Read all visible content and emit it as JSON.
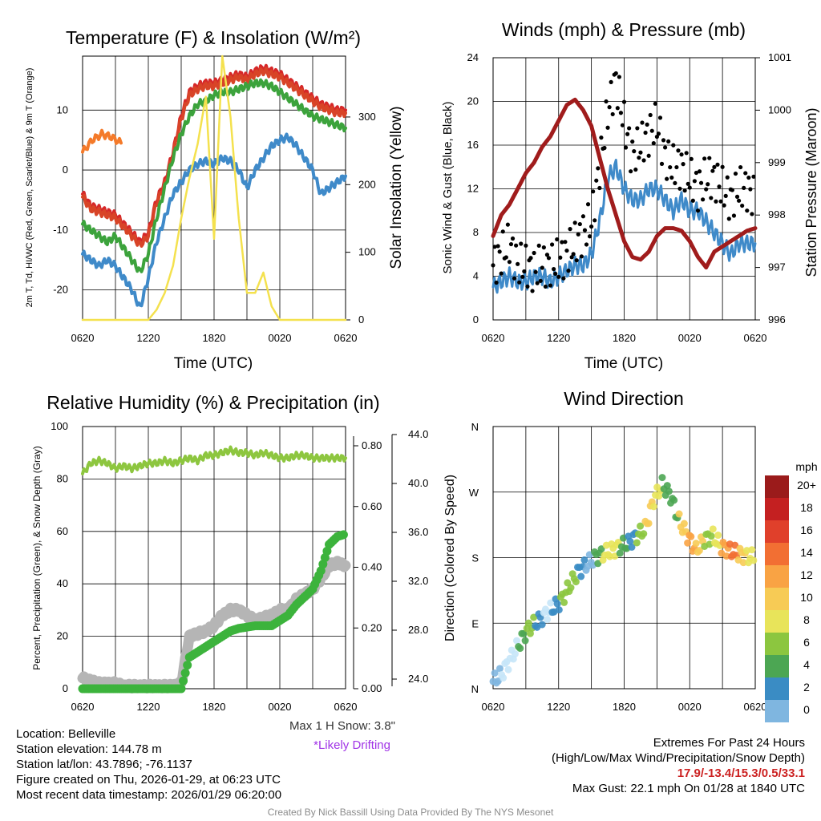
{
  "chart_data": [
    {
      "id": "temperature",
      "type": "line",
      "title": "Temperature (F) & Insolation (W/m²)",
      "xlabel": "Time (UTC)",
      "ylabel_left": "2m T, Td, HI/WC (Red, Green, Scarlet/Blue) & 9m T (Orange)",
      "ylabel_right": "Solar Insolation (Yellow)",
      "x_ticks": [
        "0620",
        "1220",
        "1820",
        "0020",
        "0620"
      ],
      "ylim": [
        -25,
        19
      ],
      "y_ticks": [
        -20,
        -10,
        0,
        10
      ],
      "ylim_right": [
        0,
        390
      ],
      "y_ticks_right": [
        0,
        100,
        200,
        300
      ],
      "series": [
        {
          "name": "9m T",
          "color": "#f47a2a",
          "values": [
            3,
            5,
            6,
            5.5,
            4.5
          ]
        },
        {
          "name": "2m T",
          "color": "#d62728",
          "values": [
            -4,
            -6,
            -6.5,
            -7,
            -7.5,
            -9,
            -10.5,
            -12,
            -10.5,
            -5,
            -2,
            3,
            9,
            13,
            14,
            14.5,
            14.5,
            15,
            15.5,
            16,
            15.5,
            16.5,
            17,
            16.5,
            16,
            15,
            14,
            13,
            12,
            11,
            10.5,
            10,
            10
          ]
        },
        {
          "name": "Wind Chill",
          "color": "#d84427",
          "values": [
            -4.5,
            -6.5,
            -7,
            -7.5,
            -8,
            -9.5,
            -11,
            -12.5,
            -11,
            -5.5,
            -2.5,
            2.5,
            8.5,
            12.5,
            13.5,
            14,
            14,
            14.5,
            15,
            15.5,
            15,
            16,
            16.5,
            16,
            15.5,
            14.5,
            13.5,
            12.5,
            11.5,
            10.5,
            10,
            9.5,
            9.5
          ]
        },
        {
          "name": "Td",
          "color": "#3ca33c",
          "values": [
            -9,
            -10,
            -11,
            -12,
            -11,
            -13,
            -15,
            -17,
            -14,
            -8,
            -3,
            2,
            6,
            9,
            11,
            11.5,
            12.5,
            13,
            13,
            13.5,
            14,
            14.5,
            14.5,
            14,
            13,
            12,
            11,
            10,
            9,
            8.5,
            8,
            7.5,
            7
          ]
        },
        {
          "name": "Blue",
          "color": "#3f8ac9",
          "values": [
            -14,
            -15,
            -16,
            -15,
            -16,
            -18,
            -20,
            -23,
            -18,
            -12,
            -8,
            -4,
            -2,
            0,
            1,
            1.5,
            1,
            2,
            1.5,
            0,
            -3,
            0,
            2,
            4,
            5,
            5.5,
            4,
            2,
            0,
            -4,
            -3,
            -2,
            -1
          ]
        },
        {
          "name": "Solar Insolation",
          "axis": "right",
          "color": "#f4e14e",
          "values": [
            0,
            0,
            0,
            0,
            0,
            0,
            0,
            0,
            0,
            15,
            40,
            80,
            150,
            210,
            260,
            330,
            120,
            390,
            300,
            150,
            40,
            40,
            70,
            20,
            0,
            0,
            0,
            0,
            0,
            0,
            0,
            0,
            0
          ]
        }
      ]
    },
    {
      "id": "winds",
      "type": "line",
      "title": "Winds (mph) & Pressure (mb)",
      "xlabel": "Time (UTC)",
      "ylabel_left": "Sonic Wind & Gust (Blue, Black)",
      "ylabel_right": "Station Pressure (Maroon)",
      "x_ticks": [
        "0620",
        "1220",
        "1820",
        "0020",
        "0620"
      ],
      "ylim": [
        0,
        24
      ],
      "y_ticks": [
        0,
        4,
        8,
        12,
        16,
        20,
        24
      ],
      "ylim_right": [
        996,
        1001
      ],
      "y_ticks_right": [
        996,
        997,
        998,
        999,
        1000,
        1001
      ],
      "series": [
        {
          "name": "Wind",
          "color": "#3f8ac9",
          "values": [
            3,
            3.5,
            4,
            3.5,
            3.5,
            4,
            4,
            3.5,
            4,
            4.5,
            5,
            5,
            6,
            9,
            13,
            14,
            12,
            11,
            11,
            12,
            12,
            11,
            10,
            11,
            10,
            10,
            9,
            8,
            7,
            6,
            7,
            7,
            7
          ]
        },
        {
          "name": "Gust",
          "color": "#000000",
          "values": [
            5,
            6,
            7,
            5,
            5,
            4.5,
            5,
            5,
            5.5,
            6,
            7,
            8,
            9,
            14,
            19,
            22,
            18,
            15,
            16,
            17,
            18,
            15,
            14,
            14,
            13,
            12,
            13,
            13,
            12,
            11,
            12,
            12,
            11
          ]
        },
        {
          "name": "Pressure",
          "axis": "right",
          "color": "#a01c1c",
          "values": [
            997.6,
            998.0,
            998.2,
            998.5,
            998.8,
            999.0,
            999.3,
            999.5,
            999.8,
            1000.1,
            1000.2,
            1000.0,
            999.7,
            999.1,
            998.5,
            998.0,
            997.5,
            997.2,
            997.15,
            997.3,
            997.6,
            997.75,
            997.75,
            997.7,
            997.5,
            997.2,
            997.0,
            997.3,
            997.4,
            997.5,
            997.6,
            997.7,
            997.75
          ]
        }
      ]
    },
    {
      "id": "humidity",
      "type": "line",
      "title": "Relative Humidity (%) & Precipitation (in)",
      "ylabel_left": "Percent, Precipitation (Green), & Snow Depth (Gray)",
      "x_ticks": [
        "0620",
        "1220",
        "1820",
        "0020",
        "0620"
      ],
      "ylim": [
        0,
        100
      ],
      "y_ticks": [
        0,
        20,
        40,
        60,
        80,
        100
      ],
      "precip_ticks": [
        "0.00",
        "0.20",
        "0.40",
        "0.60",
        "0.80"
      ],
      "snow_ticks": [
        "24.0",
        "28.0",
        "32.0",
        "36.0",
        "40.0",
        "44.0"
      ],
      "series": [
        {
          "name": "RH",
          "color": "#8dc63f",
          "values": [
            82,
            86,
            87,
            86,
            84,
            85,
            84,
            85,
            86,
            86,
            87,
            86,
            87,
            88,
            87,
            89,
            89,
            90,
            91,
            90,
            90,
            89,
            90,
            89,
            88,
            88,
            89,
            89,
            88,
            88,
            88,
            88,
            88
          ]
        },
        {
          "name": "Precipitation",
          "color": "#3cb33c",
          "values": [
            0,
            0,
            0,
            0,
            0,
            0,
            0,
            0,
            0,
            0,
            0,
            0,
            0,
            12,
            14,
            16,
            18,
            20,
            22,
            23,
            23.5,
            24,
            24,
            24,
            26,
            28,
            32,
            35,
            38,
            45,
            55,
            58,
            59
          ]
        },
        {
          "name": "Snow Depth",
          "color": "#b5b5b5",
          "values": [
            4,
            3,
            2,
            2,
            2,
            1,
            1,
            1,
            1,
            1,
            1,
            1,
            2,
            20,
            21,
            22,
            24,
            28,
            30,
            30,
            28,
            26,
            27,
            28,
            30,
            30,
            34,
            36,
            38,
            42,
            47,
            48,
            47
          ]
        }
      ],
      "annotations": [
        "Max 1 H Snow: 3.8\"",
        "*Likely Drifting"
      ]
    },
    {
      "id": "direction",
      "type": "scatter",
      "title": "Wind Direction",
      "ylabel_left": "Direction (Colored By Speed)",
      "x_ticks": [
        "0620",
        "1220",
        "1820",
        "0020",
        "0620"
      ],
      "y_ticks": [
        "N",
        "E",
        "S",
        "W",
        "N"
      ],
      "legend_title": "mph",
      "legend_labels": [
        "20+",
        "18",
        "16",
        "14",
        "12",
        "10",
        "8",
        "6",
        "4",
        "2",
        "0"
      ],
      "legend_colors": [
        "#9b1b1b",
        "#c42021",
        "#e0402b",
        "#f26f33",
        "#f9a344",
        "#f7cb55",
        "#e8e45a",
        "#8cc63f",
        "#4ca653",
        "#3a8cc4",
        "#7fb6e0",
        "#c7e6f8"
      ],
      "values": [
        10,
        20,
        40,
        60,
        80,
        90,
        100,
        110,
        120,
        140,
        160,
        170,
        180,
        185,
        190,
        195,
        200,
        210,
        220,
        260,
        280,
        265,
        230,
        210,
        190,
        205,
        210,
        195,
        190,
        185,
        182,
        180
      ]
    }
  ],
  "info": {
    "location": "Location: Belleville",
    "elevation": "Station elevation: 144.78 m",
    "latlon": "Station lat/lon: 43.7896; -76.1137",
    "created": "Figure created on Thu, 2026-01-29, at 06:23 UTC",
    "recent": "Most recent data timestamp: 2026/01/29 06:20:00"
  },
  "extremes": {
    "title": "Extremes For Past 24 Hours",
    "subtitle": "(High/Low/Max Wind/Precipitation/Snow Depth)",
    "values": "17.9/-13.4/15.3/0.5/33.1",
    "gust": "Max Gust: 22.1 mph On 01/28 at 1840 UTC"
  },
  "snow_note": "Max 1 H Snow: 3.8\"",
  "drift_note": "*Likely Drifting",
  "credit": "Created By Nick Bassill Using Data Provided By The NYS Mesonet"
}
